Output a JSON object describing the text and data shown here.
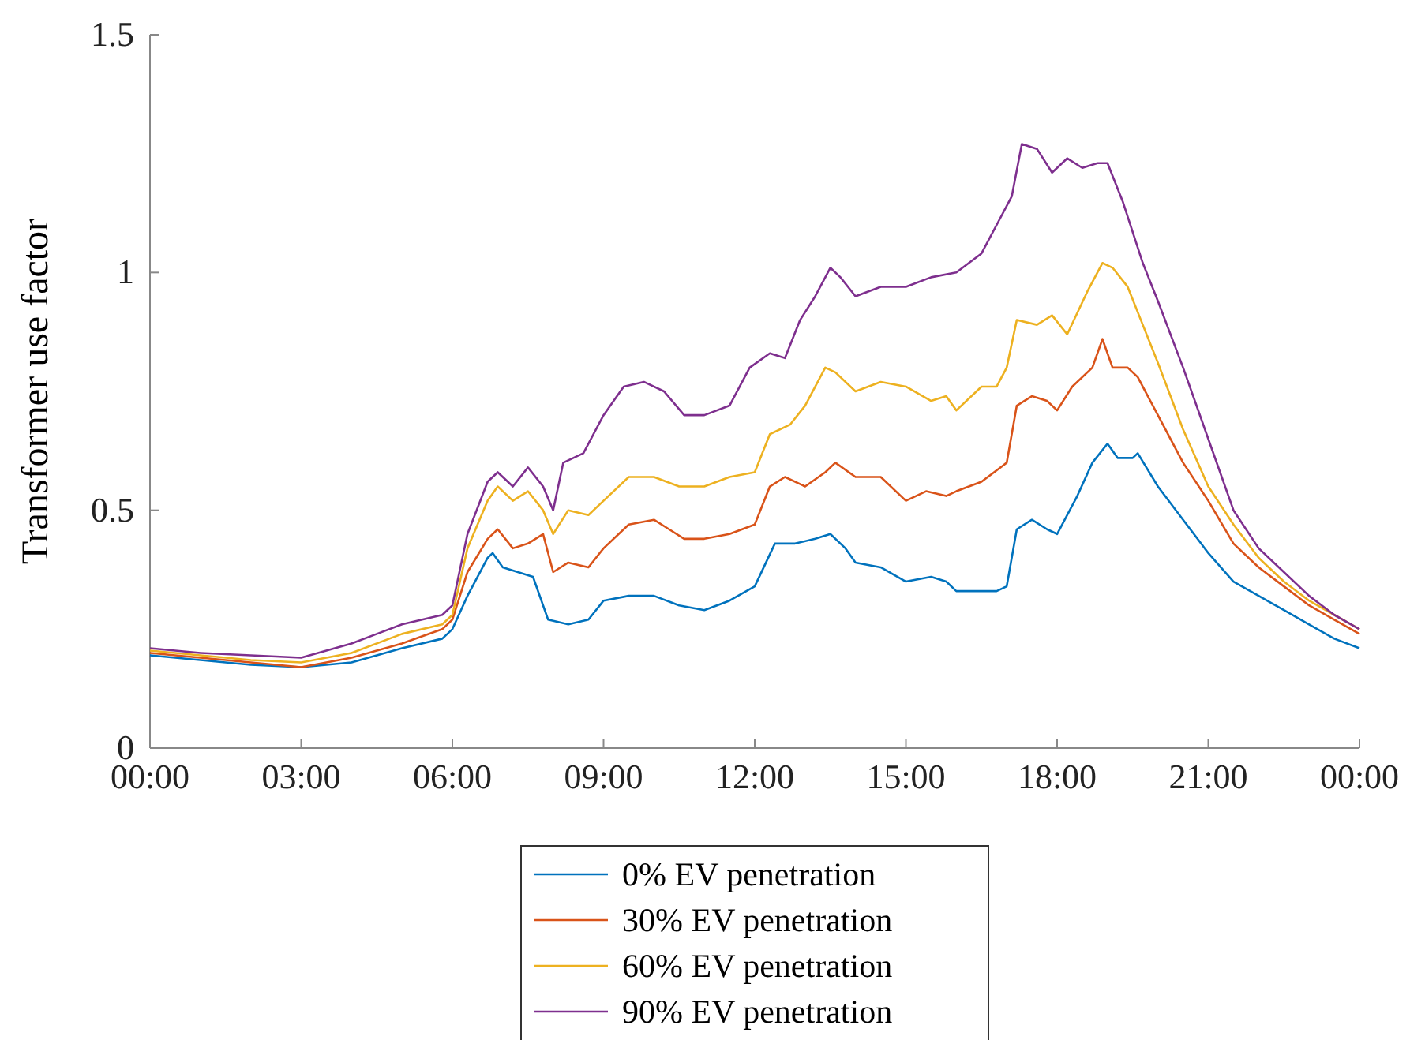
{
  "chart_data": {
    "type": "line",
    "ylabel": "Transformer use factor",
    "xlim": [
      0,
      24
    ],
    "ylim": [
      0,
      1.5
    ],
    "xticks": [
      {
        "value": 0,
        "label": "00:00"
      },
      {
        "value": 3,
        "label": "03:00"
      },
      {
        "value": 6,
        "label": "06:00"
      },
      {
        "value": 9,
        "label": "09:00"
      },
      {
        "value": 12,
        "label": "12:00"
      },
      {
        "value": 15,
        "label": "15:00"
      },
      {
        "value": 18,
        "label": "18:00"
      },
      {
        "value": 21,
        "label": "21:00"
      },
      {
        "value": 24,
        "label": "00:00"
      }
    ],
    "yticks": [
      0,
      0.5,
      1,
      1.5
    ],
    "grid": false,
    "legend": "bottom",
    "line_style": "solid",
    "marker": "none",
    "series": [
      {
        "name": "0% EV penetration",
        "color": "#0072bd",
        "x": [
          0,
          1,
          2,
          3,
          4,
          5,
          5.8,
          6,
          6.3,
          6.7,
          6.8,
          7,
          7.3,
          7.6,
          7.9,
          8.3,
          8.7,
          9,
          9.5,
          10,
          10.5,
          11,
          11.5,
          12,
          12.4,
          12.8,
          13.2,
          13.5,
          13.8,
          14,
          14.5,
          15,
          15.5,
          15.8,
          16,
          16.5,
          16.8,
          17,
          17.2,
          17.5,
          17.8,
          18,
          18.4,
          18.7,
          19,
          19.2,
          19.5,
          19.6,
          20,
          20.5,
          21,
          21.5,
          22,
          22.5,
          23,
          23.5,
          24
        ],
        "values": [
          0.195,
          0.185,
          0.175,
          0.17,
          0.18,
          0.21,
          0.23,
          0.25,
          0.32,
          0.4,
          0.41,
          0.38,
          0.37,
          0.36,
          0.27,
          0.26,
          0.27,
          0.31,
          0.32,
          0.32,
          0.3,
          0.29,
          0.31,
          0.34,
          0.43,
          0.43,
          0.44,
          0.45,
          0.42,
          0.39,
          0.38,
          0.35,
          0.36,
          0.35,
          0.33,
          0.33,
          0.33,
          0.34,
          0.46,
          0.48,
          0.46,
          0.45,
          0.53,
          0.6,
          0.64,
          0.61,
          0.61,
          0.62,
          0.55,
          0.48,
          0.41,
          0.35,
          0.32,
          0.29,
          0.26,
          0.23,
          0.21
        ]
      },
      {
        "name": "30% EV penetration",
        "color": "#d95319",
        "x": [
          0,
          1,
          2,
          3,
          4,
          5,
          5.8,
          6,
          6.3,
          6.7,
          6.9,
          7.2,
          7.5,
          7.8,
          8,
          8.3,
          8.7,
          9,
          9.5,
          10,
          10.3,
          10.6,
          11,
          11.5,
          12,
          12.3,
          12.6,
          13,
          13.4,
          13.6,
          14,
          14.5,
          15,
          15.4,
          15.8,
          16,
          16.5,
          17,
          17.2,
          17.5,
          17.8,
          18,
          18.3,
          18.7,
          18.9,
          19.1,
          19.4,
          19.6,
          20,
          20.5,
          21,
          21.5,
          22,
          22.5,
          23,
          23.5,
          24
        ],
        "values": [
          0.2,
          0.19,
          0.18,
          0.17,
          0.19,
          0.22,
          0.25,
          0.27,
          0.37,
          0.44,
          0.46,
          0.42,
          0.43,
          0.45,
          0.37,
          0.39,
          0.38,
          0.42,
          0.47,
          0.48,
          0.46,
          0.44,
          0.44,
          0.45,
          0.47,
          0.55,
          0.57,
          0.55,
          0.58,
          0.6,
          0.57,
          0.57,
          0.52,
          0.54,
          0.53,
          0.54,
          0.56,
          0.6,
          0.72,
          0.74,
          0.73,
          0.71,
          0.76,
          0.8,
          0.86,
          0.8,
          0.8,
          0.78,
          0.7,
          0.6,
          0.52,
          0.43,
          0.38,
          0.34,
          0.3,
          0.27,
          0.24
        ]
      },
      {
        "name": "60% EV penetration",
        "color": "#edb120",
        "x": [
          0,
          1,
          2,
          3,
          4,
          5,
          5.8,
          6,
          6.3,
          6.7,
          6.9,
          7.2,
          7.5,
          7.8,
          8,
          8.3,
          8.7,
          9,
          9.5,
          10,
          10.5,
          11,
          11.5,
          12,
          12.3,
          12.7,
          13,
          13.4,
          13.6,
          14,
          14.5,
          15,
          15.5,
          15.8,
          16,
          16.5,
          16.8,
          17,
          17.2,
          17.6,
          17.9,
          18.2,
          18.6,
          18.9,
          19.1,
          19.4,
          19.7,
          20,
          20.5,
          21,
          21.5,
          22,
          22.5,
          23,
          23.5,
          24
        ],
        "values": [
          0.205,
          0.195,
          0.185,
          0.18,
          0.2,
          0.24,
          0.26,
          0.28,
          0.42,
          0.52,
          0.55,
          0.52,
          0.54,
          0.5,
          0.45,
          0.5,
          0.49,
          0.52,
          0.57,
          0.57,
          0.55,
          0.55,
          0.57,
          0.58,
          0.66,
          0.68,
          0.72,
          0.8,
          0.79,
          0.75,
          0.77,
          0.76,
          0.73,
          0.74,
          0.71,
          0.76,
          0.76,
          0.8,
          0.9,
          0.89,
          0.91,
          0.87,
          0.96,
          1.02,
          1.01,
          0.97,
          0.89,
          0.81,
          0.67,
          0.55,
          0.47,
          0.4,
          0.35,
          0.31,
          0.28,
          0.25
        ]
      },
      {
        "name": "90% EV penetration",
        "color": "#7e2f8e",
        "x": [
          0,
          1,
          2,
          3,
          4,
          4.5,
          5,
          5.8,
          6,
          6.3,
          6.7,
          6.9,
          7.2,
          7.5,
          7.8,
          8,
          8.2,
          8.6,
          9,
          9.4,
          9.8,
          10.2,
          10.6,
          11,
          11.5,
          11.9,
          12.3,
          12.6,
          12.9,
          13.2,
          13.5,
          13.7,
          14,
          14.5,
          15,
          15.5,
          16,
          16.5,
          16.9,
          17.1,
          17.3,
          17.6,
          17.9,
          18.2,
          18.5,
          18.8,
          19,
          19.3,
          19.7,
          20,
          20.5,
          21,
          21.5,
          22,
          22.5,
          23,
          23.5,
          24
        ],
        "values": [
          0.21,
          0.2,
          0.195,
          0.19,
          0.22,
          0.24,
          0.26,
          0.28,
          0.3,
          0.45,
          0.56,
          0.58,
          0.55,
          0.59,
          0.55,
          0.5,
          0.6,
          0.62,
          0.7,
          0.76,
          0.77,
          0.75,
          0.7,
          0.7,
          0.72,
          0.8,
          0.83,
          0.82,
          0.9,
          0.95,
          1.01,
          0.99,
          0.95,
          0.97,
          0.97,
          0.99,
          1.0,
          1.04,
          1.12,
          1.16,
          1.27,
          1.26,
          1.21,
          1.24,
          1.22,
          1.23,
          1.23,
          1.15,
          1.02,
          0.94,
          0.8,
          0.65,
          0.5,
          0.42,
          0.37,
          0.32,
          0.28,
          0.25
        ]
      }
    ]
  }
}
